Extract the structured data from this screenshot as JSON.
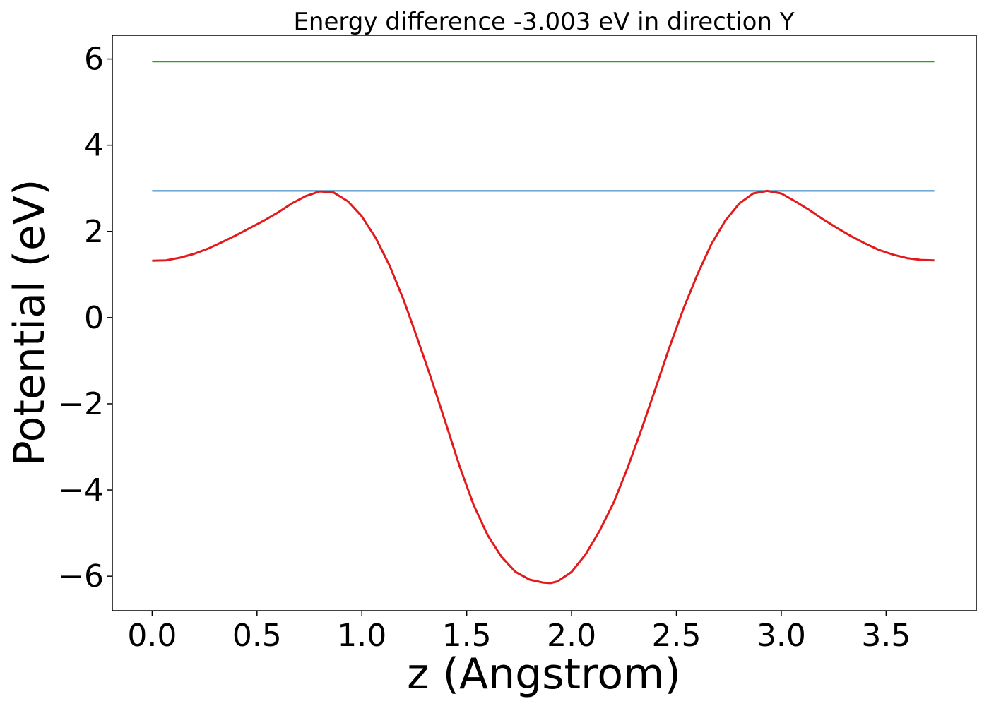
{
  "chart_data": {
    "type": "line",
    "title": "Energy difference -3.003 eV in direction Y",
    "xlabel": "z (Angstrom)",
    "ylabel": "Potential (eV)",
    "xlim": [
      -0.19,
      3.93
    ],
    "ylim": [
      -6.8,
      6.55
    ],
    "x_ticks": [
      0.0,
      0.5,
      1.0,
      1.5,
      2.0,
      2.5,
      3.0,
      3.5
    ],
    "x_tick_labels": [
      "0.0",
      "0.5",
      "1.0",
      "1.5",
      "2.0",
      "2.5",
      "3.0",
      "3.5"
    ],
    "y_ticks": [
      -6,
      -4,
      -2,
      0,
      2,
      4,
      6
    ],
    "y_tick_labels": [
      "−6",
      "−4",
      "−2",
      "0",
      "2",
      "4",
      "6"
    ],
    "grid": false,
    "series": [
      {
        "color": "#2ca02c",
        "x": [
          0.0,
          3.73
        ],
        "y": [
          5.94,
          5.94
        ]
      },
      {
        "color": "#1f77b4",
        "x": [
          0.0,
          3.73
        ],
        "y": [
          2.94,
          2.94
        ]
      },
      {
        "color": "#e31a1c",
        "x": [
          0.0,
          0.066,
          0.133,
          0.2,
          0.266,
          0.333,
          0.4,
          0.466,
          0.533,
          0.6,
          0.666,
          0.733,
          0.8,
          0.866,
          0.933,
          1.0,
          1.066,
          1.133,
          1.2,
          1.266,
          1.333,
          1.4,
          1.466,
          1.533,
          1.6,
          1.666,
          1.733,
          1.8,
          1.866,
          1.9,
          1.933,
          2.0,
          2.066,
          2.133,
          2.2,
          2.266,
          2.333,
          2.4,
          2.466,
          2.533,
          2.6,
          2.666,
          2.733,
          2.8,
          2.866,
          2.933,
          3.0,
          3.066,
          3.133,
          3.2,
          3.266,
          3.333,
          3.4,
          3.466,
          3.533,
          3.6,
          3.666,
          3.73
        ],
        "y": [
          1.32,
          1.33,
          1.39,
          1.48,
          1.6,
          1.75,
          1.91,
          2.08,
          2.25,
          2.44,
          2.65,
          2.82,
          2.93,
          2.9,
          2.7,
          2.35,
          1.85,
          1.2,
          0.4,
          -0.5,
          -1.45,
          -2.45,
          -3.45,
          -4.35,
          -5.05,
          -5.55,
          -5.9,
          -6.08,
          -6.15,
          -6.16,
          -6.12,
          -5.9,
          -5.5,
          -4.95,
          -4.3,
          -3.5,
          -2.6,
          -1.65,
          -0.7,
          0.2,
          1.0,
          1.7,
          2.25,
          2.65,
          2.88,
          2.94,
          2.88,
          2.7,
          2.5,
          2.28,
          2.08,
          1.89,
          1.72,
          1.57,
          1.46,
          1.38,
          1.34,
          1.33
        ]
      }
    ]
  }
}
